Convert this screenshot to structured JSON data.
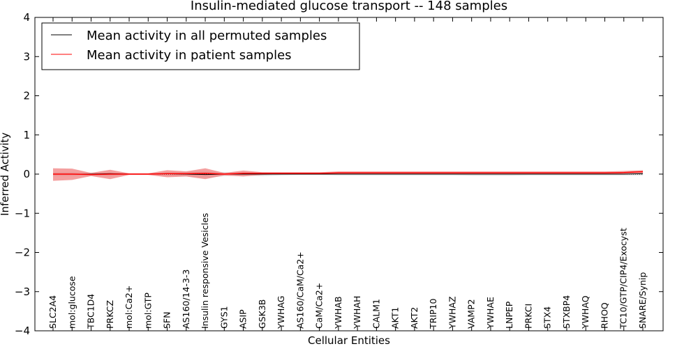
{
  "chart_data": {
    "type": "line",
    "title": "Insulin-mediated glucose transport -- 148 samples",
    "xlabel": "Cellular Entities",
    "ylabel": "Inferred Activity",
    "ylim": [
      -4,
      4
    ],
    "yticks": [
      -4,
      -3,
      -2,
      -1,
      0,
      1,
      2,
      3,
      4
    ],
    "ytick_labels": [
      "−4",
      "−3",
      "−2",
      "−1",
      "0",
      "1",
      "2",
      "3",
      "4"
    ],
    "legend_position": "top-left",
    "categories": [
      "SLC2A4",
      "mol:glucose",
      "TBC1D4",
      "PRKCZ",
      "mol:Ca2+",
      "mol:GTP",
      "SFN",
      "AS160/14-3-3",
      "Insulin responsive Vesicles",
      "GYS1",
      "ASIP",
      "GSK3B",
      "YWHAG",
      "AS160/CaM/Ca2+",
      "CaM/Ca2+",
      "YWHAB",
      "YWHAH",
      "CALM1",
      "AKT1",
      "AKT2",
      "TRIP10",
      "YWHAZ",
      "VAMP2",
      "YWHAE",
      "LNPEP",
      "PRKCI",
      "STX4",
      "STXBP4",
      "YWHAQ",
      "RHOQ",
      "TC10/GTP/CIP4/Exocyst",
      "SNARE/Synip"
    ],
    "series": [
      {
        "name": "Mean activity in all permuted samples",
        "color": "#000000",
        "band_color": "#c8c8c8",
        "values": [
          0.0,
          0.0,
          0.0,
          0.01,
          0.0,
          0.0,
          0.01,
          0.0,
          -0.01,
          0.0,
          0.0,
          0.0,
          0.0,
          0.0,
          0.0,
          0.0,
          0.0,
          0.0,
          0.0,
          0.0,
          0.0,
          0.0,
          0.0,
          0.0,
          0.0,
          0.0,
          0.0,
          0.0,
          0.0,
          0.0,
          0.0,
          0.01
        ],
        "lower": [
          -0.05,
          -0.05,
          -0.04,
          -0.06,
          -0.02,
          -0.02,
          -0.05,
          -0.06,
          -0.1,
          -0.05,
          -0.04,
          -0.05,
          -0.03,
          -0.02,
          -0.02,
          -0.03,
          -0.03,
          -0.03,
          -0.03,
          -0.03,
          -0.03,
          -0.03,
          -0.04,
          -0.04,
          -0.04,
          -0.03,
          -0.03,
          -0.03,
          -0.03,
          -0.03,
          -0.03,
          -0.03
        ],
        "upper": [
          0.05,
          0.05,
          0.04,
          0.06,
          0.02,
          0.02,
          0.05,
          0.06,
          0.08,
          0.05,
          0.04,
          0.04,
          0.03,
          0.02,
          0.02,
          0.03,
          0.03,
          0.03,
          0.03,
          0.03,
          0.03,
          0.03,
          0.04,
          0.04,
          0.04,
          0.03,
          0.03,
          0.03,
          0.03,
          0.03,
          0.03,
          0.04
        ]
      },
      {
        "name": "Mean activity in patient samples",
        "color": "#ff0000",
        "band_color": "#f08080",
        "values": [
          0.0,
          0.0,
          -0.01,
          0.0,
          0.0,
          0.0,
          0.01,
          0.01,
          0.02,
          0.0,
          0.02,
          0.02,
          0.02,
          0.02,
          0.02,
          0.03,
          0.03,
          0.03,
          0.03,
          0.03,
          0.03,
          0.03,
          0.03,
          0.03,
          0.03,
          0.03,
          0.03,
          0.03,
          0.03,
          0.03,
          0.04,
          0.06
        ],
        "lower": [
          -0.17,
          -0.15,
          -0.05,
          -0.13,
          -0.02,
          -0.02,
          -0.08,
          -0.06,
          -0.13,
          -0.03,
          -0.06,
          -0.02,
          0.0,
          0.0,
          0.0,
          0.0,
          0.0,
          0.0,
          0.0,
          0.0,
          0.0,
          0.0,
          0.0,
          0.0,
          0.0,
          0.0,
          0.0,
          0.0,
          0.0,
          0.0,
          0.01,
          0.03
        ],
        "upper": [
          0.15,
          0.14,
          0.03,
          0.11,
          0.02,
          0.02,
          0.1,
          0.07,
          0.15,
          0.03,
          0.09,
          0.05,
          0.05,
          0.05,
          0.05,
          0.07,
          0.07,
          0.07,
          0.07,
          0.07,
          0.07,
          0.07,
          0.07,
          0.07,
          0.07,
          0.07,
          0.07,
          0.07,
          0.07,
          0.07,
          0.08,
          0.1
        ]
      }
    ],
    "reference_line": {
      "value": 0,
      "style": "dotted"
    }
  }
}
